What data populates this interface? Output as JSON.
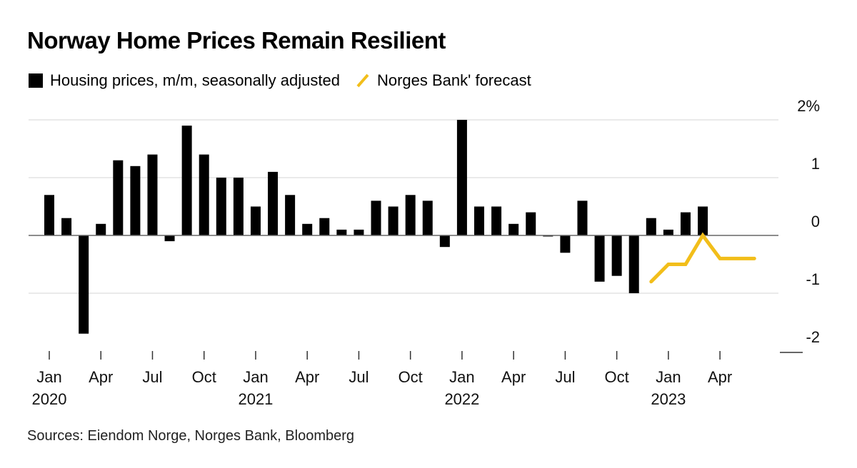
{
  "title": "Norway Home Prices Remain Resilient",
  "source": "Sources: Eiendom Norge, Norges Bank, Bloomberg",
  "chart_data": {
    "type": "bar",
    "title": "Norway Home Prices Remain Resilient",
    "legend": [
      "Housing prices, m/m, seasonally adjusted",
      "Norges Bank' forecast"
    ],
    "legend_position": "top-left",
    "y_ticks": [
      "2%",
      "1",
      "0",
      "-1",
      "-2"
    ],
    "ylim": [
      -2,
      2
    ],
    "grid": true,
    "x_ticks": [
      {
        "label": "Jan",
        "year": "2020"
      },
      {
        "label": "Apr",
        "year": ""
      },
      {
        "label": "Jul",
        "year": ""
      },
      {
        "label": "Oct",
        "year": ""
      },
      {
        "label": "Jan",
        "year": "2021"
      },
      {
        "label": "Apr",
        "year": ""
      },
      {
        "label": "Jul",
        "year": ""
      },
      {
        "label": "Oct",
        "year": ""
      },
      {
        "label": "Jan",
        "year": "2022"
      },
      {
        "label": "Apr",
        "year": ""
      },
      {
        "label": "Jul",
        "year": ""
      },
      {
        "label": "Oct",
        "year": ""
      },
      {
        "label": "Jan",
        "year": "2023"
      },
      {
        "label": "Apr",
        "year": ""
      }
    ],
    "series": [
      {
        "name": "Housing prices, m/m, seasonally adjusted",
        "type": "bar",
        "color": "#000000",
        "start": "2020-01",
        "values": [
          0.7,
          0.3,
          -1.7,
          0.2,
          1.3,
          1.2,
          1.4,
          -0.1,
          1.9,
          1.4,
          1.0,
          1.0,
          0.5,
          1.1,
          0.7,
          0.2,
          0.3,
          0.1,
          0.1,
          0.6,
          0.5,
          0.7,
          0.6,
          -0.2,
          2.0,
          0.5,
          0.5,
          0.2,
          0.4,
          0.0,
          -0.3,
          0.6,
          -0.8,
          -0.7,
          -1.0,
          0.3,
          0.1,
          0.4,
          0.5
        ]
      },
      {
        "name": "Norges Bank' forecast",
        "type": "line",
        "color": "#F2BE1A",
        "start": "2022-12",
        "values": [
          -0.8,
          -0.5,
          -0.5,
          0.0,
          -0.4,
          -0.4,
          -0.4
        ]
      }
    ]
  }
}
